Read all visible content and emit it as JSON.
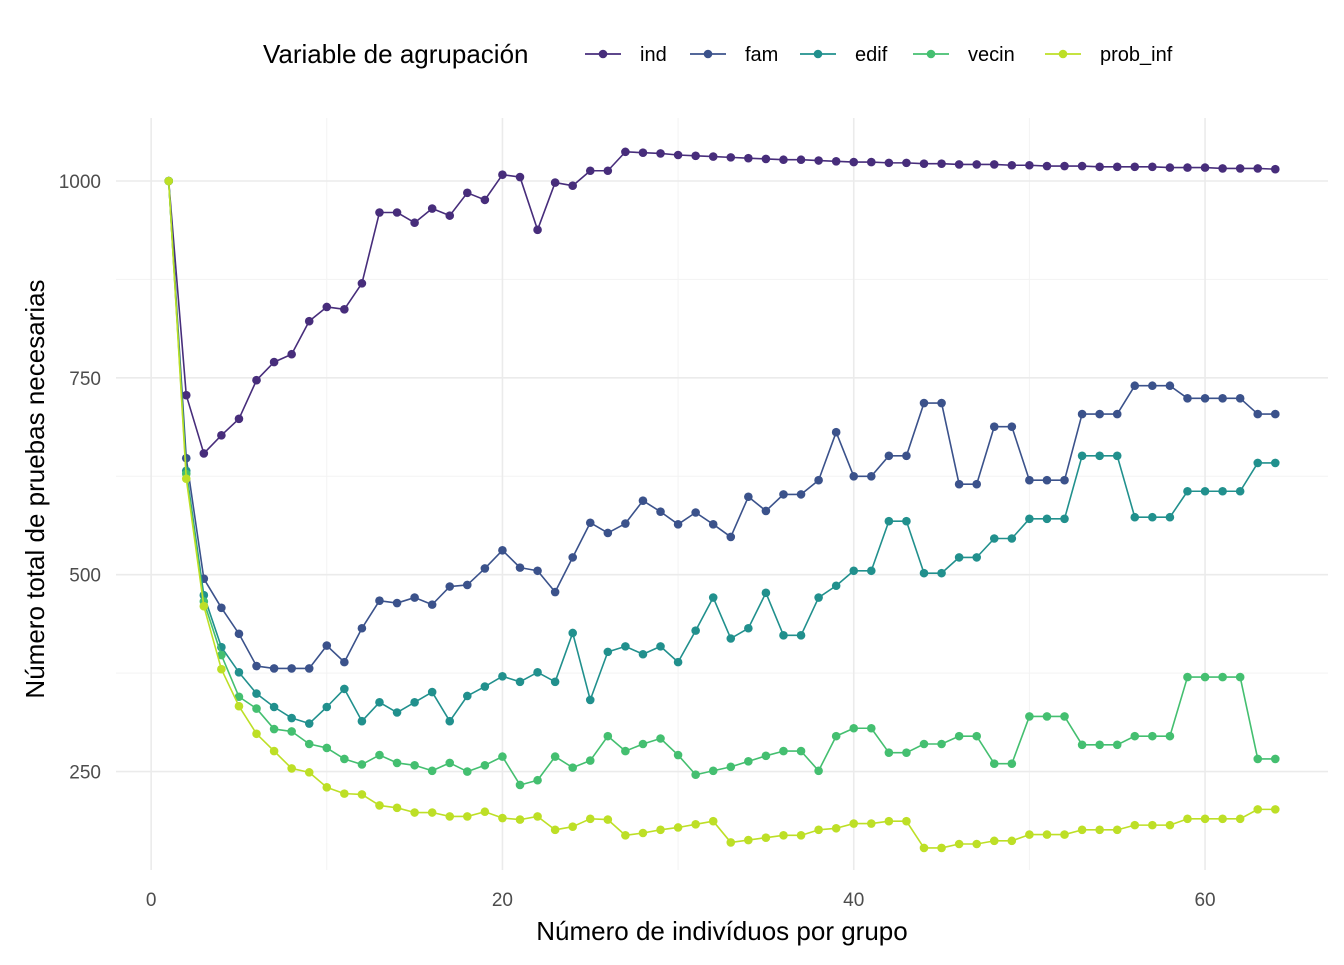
{
  "chart_data": {
    "type": "line",
    "xlabel": "Número de indivíduos por grupo",
    "ylabel": "Número total de pruebas necesarias",
    "legend_title": "Variable de agrupación",
    "legend_position": "top",
    "grid": true,
    "xlim": [
      -2,
      67
    ],
    "ylim": [
      125,
      1080
    ],
    "x_ticks": [
      0,
      20,
      40,
      60
    ],
    "y_ticks": [
      250,
      500,
      750,
      1000
    ],
    "x_tick_labels": [
      "0",
      "20",
      "40",
      "60"
    ],
    "y_tick_labels": [
      "250",
      "500",
      "750",
      "1000"
    ],
    "x": [
      1,
      2,
      3,
      4,
      5,
      6,
      7,
      8,
      9,
      10,
      11,
      12,
      13,
      14,
      15,
      16,
      17,
      18,
      19,
      20,
      21,
      22,
      23,
      24,
      25,
      26,
      27,
      28,
      29,
      30,
      31,
      32,
      33,
      34,
      35,
      36,
      37,
      38,
      39,
      40,
      41,
      42,
      43,
      44,
      45,
      46,
      47,
      48,
      49,
      50,
      51,
      52,
      53,
      54,
      55,
      56,
      57,
      58,
      59,
      60,
      61,
      62,
      63,
      64
    ],
    "series": [
      {
        "name": "ind",
        "color": "#472d7b",
        "values": [
          1000,
          728,
          654,
          677,
          698,
          747,
          770,
          780,
          822,
          840,
          837,
          870,
          960,
          960,
          947,
          965,
          956,
          985,
          976,
          1008,
          1005,
          938,
          998,
          994,
          1013,
          1013,
          1037,
          1036,
          1035,
          1033,
          1032,
          1031,
          1030,
          1029,
          1028,
          1027,
          1027,
          1026,
          1025,
          1024,
          1024,
          1023,
          1023,
          1022,
          1022,
          1021,
          1021,
          1021,
          1020,
          1020,
          1019,
          1019,
          1019,
          1018,
          1018,
          1018,
          1018,
          1017,
          1017,
          1017,
          1016,
          1016,
          1016,
          1015
        ]
      },
      {
        "name": "fam",
        "color": "#3b528b",
        "values": [
          1000,
          648,
          495,
          458,
          425,
          384,
          381,
          381,
          381,
          410,
          389,
          432,
          467,
          464,
          471,
          462,
          485,
          487,
          508,
          531,
          509,
          505,
          478,
          522,
          566,
          553,
          565,
          594,
          580,
          564,
          579,
          564,
          548,
          599,
          581,
          602,
          602,
          620,
          681,
          625,
          625,
          651,
          651,
          718,
          718,
          615,
          615,
          688,
          688,
          620,
          620,
          620,
          704,
          704,
          704,
          740,
          740,
          740,
          724,
          724,
          724,
          724,
          704,
          704
        ]
      },
      {
        "name": "edif",
        "color": "#21908d",
        "values": [
          1000,
          632,
          474,
          408,
          376,
          349,
          332,
          318,
          311,
          332,
          355,
          314,
          338,
          325,
          338,
          351,
          314,
          346,
          358,
          371,
          364,
          376,
          364,
          426,
          341,
          402,
          409,
          399,
          409,
          389,
          429,
          471,
          419,
          432,
          477,
          423,
          423,
          471,
          486,
          505,
          505,
          568,
          568,
          502,
          502,
          522,
          522,
          546,
          546,
          571,
          571,
          571,
          651,
          651,
          651,
          573,
          573,
          573,
          606,
          606,
          606,
          606,
          642,
          642
        ]
      },
      {
        "name": "vecin",
        "color": "#44bf70",
        "values": [
          1000,
          628,
          466,
          398,
          345,
          330,
          304,
          301,
          285,
          280,
          266,
          259,
          271,
          261,
          258,
          251,
          261,
          250,
          258,
          269,
          233,
          239,
          269,
          255,
          264,
          295,
          276,
          285,
          292,
          271,
          246,
          251,
          256,
          263,
          270,
          276,
          276,
          251,
          295,
          305,
          305,
          274,
          274,
          285,
          285,
          295,
          295,
          260,
          260,
          320,
          320,
          320,
          284,
          284,
          284,
          295,
          295,
          295,
          370,
          370,
          370,
          370,
          266,
          266
        ]
      },
      {
        "name": "prob_inf",
        "color": "#bddf26",
        "values": [
          1000,
          622,
          460,
          380,
          333,
          298,
          276,
          254,
          249,
          230,
          222,
          221,
          207,
          204,
          198,
          198,
          193,
          193,
          199,
          191,
          189,
          193,
          176,
          180,
          190,
          189,
          169,
          172,
          176,
          179,
          183,
          187,
          160,
          163,
          166,
          169,
          169,
          176,
          178,
          184,
          184,
          187,
          187,
          153,
          153,
          158,
          158,
          162,
          162,
          170,
          170,
          170,
          176,
          176,
          176,
          182,
          182,
          182,
          190,
          190,
          190,
          190,
          202,
          202
        ]
      }
    ]
  }
}
